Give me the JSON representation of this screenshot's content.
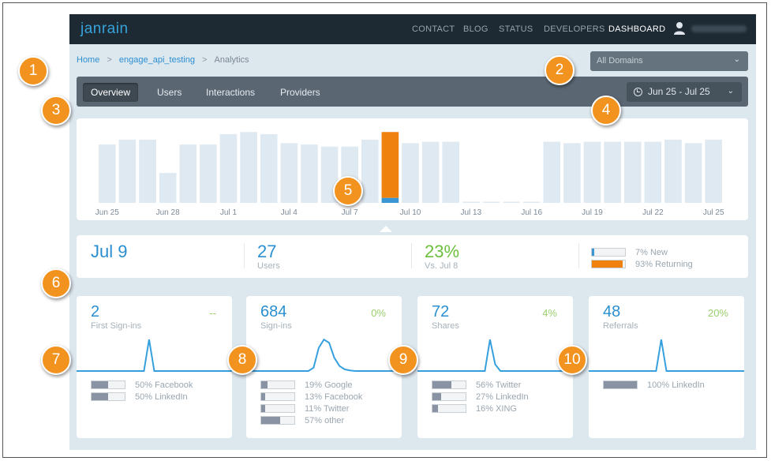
{
  "nav": {
    "logo": "janrain",
    "links": [
      "CONTACT",
      "BLOG",
      "STATUS",
      "DEVELOPERS",
      "DASHBOARD"
    ],
    "active": "DASHBOARD"
  },
  "breadcrumb": {
    "home": "Home",
    "app": "engage_api_testing",
    "current": "Analytics",
    "separator": ">"
  },
  "domain_select": {
    "value": "All Domains"
  },
  "tabs": [
    "Overview",
    "Users",
    "Interactions",
    "Providers"
  ],
  "active_tab": "Overview",
  "date_range": {
    "value": "Jun 25 - Jul 25"
  },
  "chart_data": {
    "type": "bar",
    "ylim": [
      0,
      100
    ],
    "days": [
      "Jun 25",
      "Jun 26",
      "Jun 27",
      "Jun 28",
      "Jun 29",
      "Jun 30",
      "Jul 1",
      "Jul 2",
      "Jul 3",
      "Jul 4",
      "Jul 5",
      "Jul 6",
      "Jul 7",
      "Jul 8",
      "Jul 9",
      "Jul 10",
      "Jul 11",
      "Jul 12",
      "Jul 13",
      "Jul 14",
      "Jul 15",
      "Jul 16",
      "Jul 17",
      "Jul 18",
      "Jul 19",
      "Jul 20",
      "Jul 21",
      "Jul 22",
      "Jul 23",
      "Jul 24",
      "Jul 25"
    ],
    "tick_labels": [
      "Jun 25",
      "Jun 28",
      "Jul 1",
      "Jul 4",
      "Jul 7",
      "Jul 10",
      "Jul 13",
      "Jul 16",
      "Jul 19",
      "Jul 22",
      "Jul 25"
    ],
    "values": [
      84,
      91,
      91,
      43,
      84,
      84,
      99,
      102,
      99,
      86,
      84,
      81,
      81,
      91,
      102,
      86,
      88,
      88,
      1,
      1,
      1,
      1,
      88,
      86,
      88,
      88,
      88,
      88,
      91,
      86,
      91
    ],
    "highlight": {
      "day": "Jul 9",
      "new": 7,
      "returning": 93
    },
    "colors": {
      "bar": "#dfe9f1",
      "returning": "#ef820f",
      "new": "#3b97d3"
    }
  },
  "summary": {
    "date": "Jul 9",
    "users": {
      "value": "27",
      "label": "Users"
    },
    "change": {
      "value": "23%",
      "label": "Vs. Jul 8"
    },
    "new_label": "7% New",
    "returning_label": "93% Returning",
    "new_pct": 7,
    "returning_pct": 93
  },
  "cards": [
    {
      "value": "2",
      "label": "First Sign-ins",
      "pct": "--",
      "rows": [
        {
          "label": "50% Facebook",
          "pct": 50
        },
        {
          "label": "50% LinkedIn",
          "pct": 50
        }
      ],
      "spark": [
        0,
        0,
        0,
        0,
        0,
        0,
        0,
        0,
        0,
        0,
        0,
        0,
        0,
        0,
        95,
        0,
        0,
        0,
        0,
        0,
        0,
        0,
        0,
        0,
        0,
        0,
        0,
        0,
        0,
        0,
        0
      ]
    },
    {
      "value": "684",
      "label": "Sign-ins",
      "pct": "0%",
      "rows": [
        {
          "label": "19% Google",
          "pct": 19
        },
        {
          "label": "13% Facebook",
          "pct": 13
        },
        {
          "label": "11% Twitter",
          "pct": 11
        },
        {
          "label": "57% other",
          "pct": 57
        }
      ],
      "spark": [
        0,
        0,
        0,
        0,
        0,
        0,
        0,
        0,
        0,
        0,
        0,
        0,
        0,
        10,
        70,
        95,
        85,
        40,
        15,
        5,
        2,
        0,
        0,
        0,
        0,
        0,
        0,
        0,
        0,
        0,
        0
      ]
    },
    {
      "value": "72",
      "label": "Shares",
      "pct": "4%",
      "rows": [
        {
          "label": "56% Twitter",
          "pct": 56
        },
        {
          "label": "27% LinkedIn",
          "pct": 27
        },
        {
          "label": "16% XING",
          "pct": 16
        }
      ],
      "spark": [
        0,
        0,
        0,
        0,
        0,
        0,
        0,
        0,
        0,
        0,
        0,
        0,
        0,
        0,
        95,
        20,
        0,
        0,
        0,
        0,
        0,
        0,
        0,
        0,
        0,
        0,
        0,
        0,
        0,
        0,
        0
      ]
    },
    {
      "value": "48",
      "label": "Referrals",
      "pct": "20%",
      "rows": [
        {
          "label": "100% LinkedIn",
          "pct": 100
        }
      ],
      "spark": [
        0,
        0,
        0,
        0,
        0,
        0,
        0,
        0,
        0,
        0,
        0,
        0,
        0,
        0,
        95,
        0,
        0,
        0,
        0,
        0,
        0,
        0,
        0,
        0,
        0,
        0,
        0,
        0,
        0,
        0,
        0
      ]
    }
  ],
  "callouts": [
    "1",
    "2",
    "3",
    "4",
    "5",
    "6",
    "7",
    "8",
    "9",
    "10"
  ]
}
